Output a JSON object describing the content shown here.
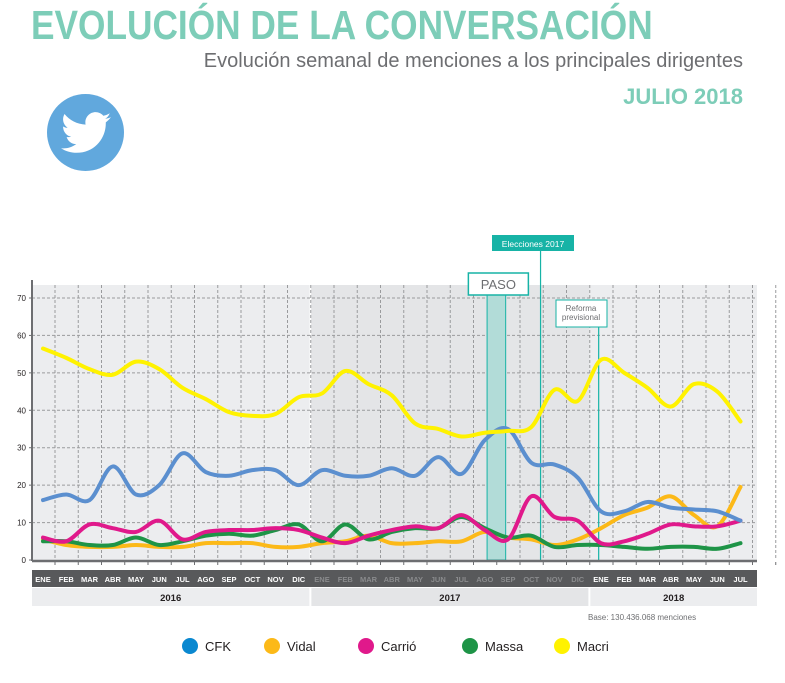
{
  "header": {
    "title": "EVOLUCIÓN DE LA CONVERSACIÓN",
    "subtitle": "Evolución semanal de menciones a los principales dirigentes",
    "date": "JULIO 2018",
    "icon": "twitter-bird-icon"
  },
  "base_note": "Base: 130.436.068 menciones",
  "colors": {
    "title": "#7dcdb8",
    "twitter": "#61a8dd",
    "annotation": "#17b3a6"
  },
  "chart_data": {
    "type": "line",
    "title": "Evolución semanal de menciones a los principales dirigentes",
    "xlabel": "",
    "ylabel": "",
    "ylim": [
      0,
      70
    ],
    "yticks": [
      0,
      10,
      20,
      30,
      40,
      50,
      60,
      70
    ],
    "grid": true,
    "legend_position": "bottom",
    "x": [
      "ENE",
      "FEB",
      "MAR",
      "ABR",
      "MAY",
      "JUN",
      "JUL",
      "AGO",
      "SEP",
      "OCT",
      "NOV",
      "DIC",
      "ENE",
      "FEB",
      "MAR",
      "ABR",
      "MAY",
      "JUN",
      "JUL",
      "AGO",
      "SEP",
      "OCT",
      "NOV",
      "DIC",
      "ENE",
      "FEB",
      "MAR",
      "ABR",
      "MAY",
      "JUN",
      "JUL"
    ],
    "years": [
      {
        "label": "2016",
        "start": 0,
        "end": 11
      },
      {
        "label": "2017",
        "start": 12,
        "end": 23
      },
      {
        "label": "2018",
        "start": 24,
        "end": 30
      }
    ],
    "annotations": [
      {
        "label": "PASO",
        "type": "band",
        "start": 19.1,
        "end": 19.9
      },
      {
        "label": "Elecciones 2017",
        "type": "line",
        "at": 21.4
      },
      {
        "label": "Reforma previsional",
        "type": "line",
        "at": 23.9
      }
    ],
    "series": [
      {
        "name": "CFK",
        "color": "#5b8fcf",
        "legend_color": "#0a88d0",
        "values": [
          16,
          17.5,
          16,
          25,
          17.5,
          20,
          28.5,
          23.5,
          22.5,
          24,
          24,
          20,
          24,
          22.5,
          22.5,
          24.5,
          22.5,
          27.5,
          23,
          32,
          35,
          26,
          25.5,
          22,
          13,
          13,
          15.5,
          14,
          13.5,
          13,
          10.5
        ]
      },
      {
        "name": "Vidal",
        "color": "#fcb918",
        "legend_color": "#fcb918",
        "values": [
          5.5,
          4,
          3.5,
          3.5,
          4,
          3.5,
          3.5,
          4.5,
          4.5,
          4.5,
          3.5,
          3.5,
          4.5,
          5,
          6.5,
          4.5,
          4.5,
          5,
          5,
          7.5,
          6,
          5.5,
          4,
          5.5,
          8.5,
          12,
          14,
          17,
          12,
          9,
          19.5
        ]
      },
      {
        "name": "Carrió",
        "color": "#e0198b",
        "legend_color": "#e0198b",
        "values": [
          6,
          5,
          9.5,
          8.5,
          7.5,
          10.5,
          5.5,
          7.5,
          8,
          8,
          8.5,
          8,
          6,
          4.5,
          6.5,
          8,
          9,
          8.5,
          12,
          8,
          5.5,
          17,
          11.5,
          10.5,
          4.5,
          5,
          7,
          9.5,
          9,
          9,
          10.5
        ]
      },
      {
        "name": "Massa",
        "color": "#1e9447",
        "legend_color": "#1e9447",
        "values": [
          5,
          5,
          4,
          4,
          6,
          4,
          5,
          6.5,
          7,
          6.5,
          8,
          9.5,
          5,
          9.5,
          5.5,
          7.5,
          8.5,
          8.5,
          11.5,
          8.5,
          6,
          6.5,
          3.5,
          4,
          4,
          3.5,
          3,
          3.5,
          3.5,
          3,
          4.5
        ]
      },
      {
        "name": "Macri",
        "color": "#fff200",
        "legend_color": "#fff200",
        "values": [
          56.5,
          54,
          51,
          49.5,
          53,
          51,
          46,
          43,
          39.5,
          38.5,
          39,
          43.5,
          44.5,
          50.5,
          47,
          44,
          36.5,
          35,
          33,
          34,
          34.5,
          35.5,
          45.5,
          42.5,
          53.5,
          50,
          46,
          41,
          47,
          45,
          37
        ]
      }
    ]
  }
}
